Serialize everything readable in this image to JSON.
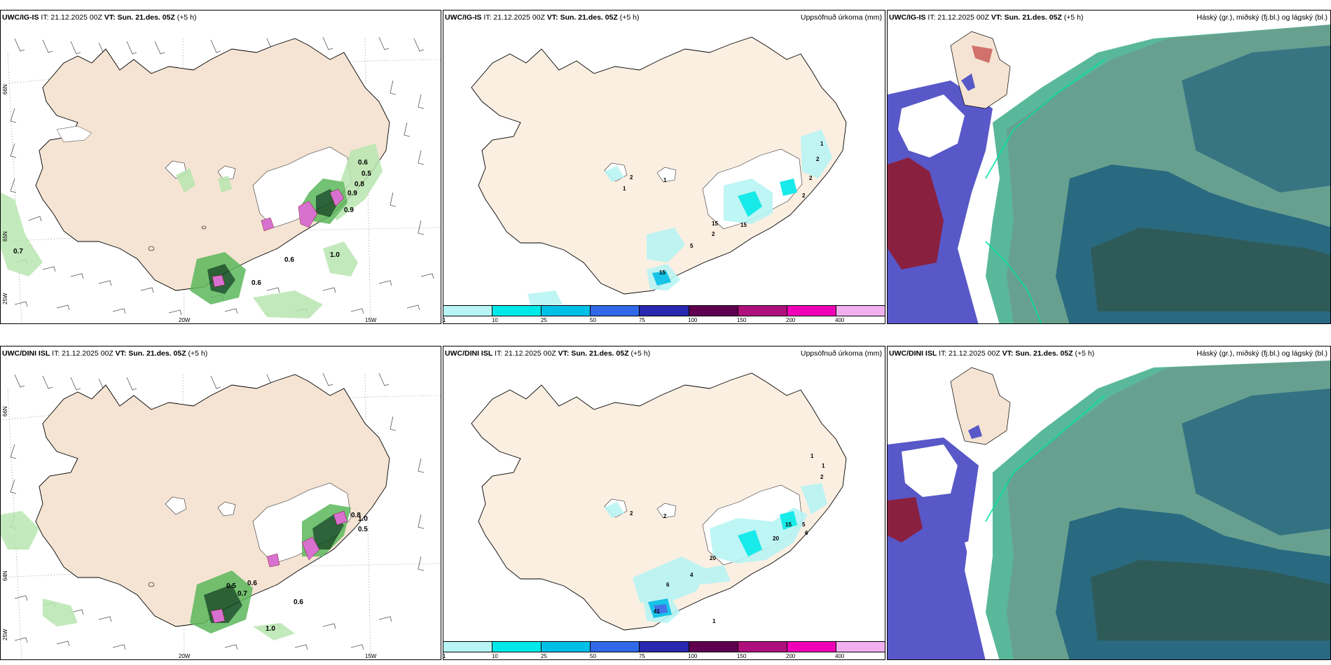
{
  "rows": [
    {
      "p1_title": {
        "model": "UWC/IG-IS",
        "it": " IT: 21.12.2025 00Z ",
        "vt_label": "VT:",
        "vt": " Sun. 21.des. 05Z",
        "lead": " (+5 h)"
      },
      "p2_title": {
        "model": "UWC/IG-IS",
        "it": " IT: 21.12.2025 00Z ",
        "vt_label": "VT:",
        "vt": " Sun. 21.des. 05Z",
        "lead": " (+5 h)",
        "right": "Uppsöfnuð úrkoma (mm)"
      },
      "p3_title": {
        "model": "UWC/IG-IS",
        "it": " IT: 21.12.2025 00Z ",
        "vt_label": "VT:",
        "vt": " Sun. 21.des. 05Z",
        "lead": " (+5 h)",
        "right": "Háský (gr.), miðský (fj.bl.) og lágský (bl.)"
      },
      "p1_values": [
        "0.6",
        "0.5",
        "0.8",
        "0.9",
        "0.9",
        "0.7",
        "0.6",
        "1.0",
        "0.6"
      ],
      "p2_values": [
        "2",
        "1",
        "1",
        "1",
        "2",
        "2",
        "2",
        "15",
        "2",
        "5",
        "15",
        "15"
      ]
    },
    {
      "p1_title": {
        "model": "UWC/DINI ISL",
        "it": " IT: 21.12.2025 00Z ",
        "vt_label": "VT:",
        "vt": " Sun. 21.des. 05Z",
        "lead": " (+5 h)"
      },
      "p2_title": {
        "model": "UWC/DINI ISL",
        "it": " IT: 21.12.2025 00Z ",
        "vt_label": "VT:",
        "vt": " Sun. 21.des. 05Z",
        "lead": " (+5 h)",
        "right": "Uppsöfnuð úrkoma (mm)"
      },
      "p3_title": {
        "model": "UWC/DINI ISL",
        "it": " IT: 21.12.2025 00Z ",
        "vt_label": "VT:",
        "vt": " Sun. 21.des. 05Z",
        "lead": " (+5 h)",
        "right": "Háský (gr.), miðský (fj.bl.) og lágský (bl.)"
      },
      "p1_values": [
        "0.8",
        "1.0",
        "0.5",
        "0.6",
        "0.5",
        "0.7",
        "0.6",
        "1.0"
      ],
      "p2_values": [
        "2",
        "2",
        "1",
        "1",
        "2",
        "5",
        "6",
        "15",
        "20",
        "4",
        "20",
        "6",
        "41",
        "1"
      ]
    }
  ],
  "axes": {
    "lat66": "66N",
    "lat64": "64N",
    "lat65": "65N",
    "lon25": "25W",
    "lon20": "20W",
    "lon15": "15W"
  },
  "colorbar": {
    "labels": [
      "1",
      "10",
      "25",
      "50",
      "75",
      "100",
      "150",
      "200",
      "400"
    ],
    "colors": [
      "#b8f4f4",
      "#00e8e8",
      "#00c0e8",
      "#3068e8",
      "#2828b0",
      "#600050",
      "#b0107c",
      "#f000b8",
      "#f0b0f0"
    ]
  },
  "colors": {
    "land": "#f5e4d4",
    "land_light": "#fbefe2",
    "green_light": "#b8e6b0",
    "green_mid": "#5cb85c",
    "green_dark": "#0a4a1a",
    "purple": "#d870d0",
    "cloud_high": "#5ab89a",
    "cloud_mid": "#2a6a80",
    "cloud_low": "#5858c8",
    "cloud_maroon": "#8a2040"
  }
}
